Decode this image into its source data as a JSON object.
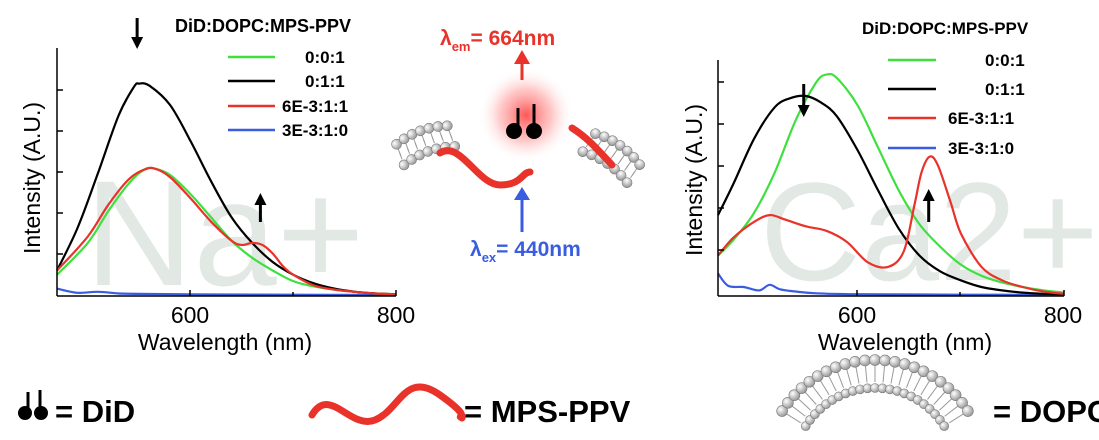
{
  "colors": {
    "green": "#3ee03e",
    "black": "#000000",
    "red": "#e8322a",
    "blue": "#3a5ce0",
    "watermark": "#e2e8e4",
    "lipid": "#bdbdbd"
  },
  "chart_data": [
    {
      "type": "line",
      "panel": "left",
      "watermark": "Na+",
      "xlabel": "Wavelength (nm)",
      "ylabel": "Intensity (A.U.)",
      "xlim": [
        470,
        800
      ],
      "ylim": [
        0,
        1.05
      ],
      "xticks": [
        "600",
        "800"
      ],
      "legend_title": "DiD:DOPC:MPS-PPV",
      "legend_position": "top-right",
      "series": [
        {
          "name": "0:0:1",
          "color": "#3ee03e",
          "x": [
            470,
            500,
            520,
            540,
            555,
            565,
            580,
            600,
            620,
            640,
            660,
            680,
            700,
            720,
            740,
            760,
            780,
            800
          ],
          "y": [
            0.1,
            0.25,
            0.4,
            0.53,
            0.595,
            0.6,
            0.57,
            0.48,
            0.37,
            0.26,
            0.18,
            0.12,
            0.07,
            0.045,
            0.03,
            0.02,
            0.012,
            0.008
          ]
        },
        {
          "name": "0:1:1",
          "color": "#000000",
          "x": [
            470,
            490,
            510,
            530,
            545,
            550,
            560,
            580,
            600,
            620,
            640,
            660,
            680,
            700,
            720,
            740,
            760,
            780,
            800
          ],
          "y": [
            0.12,
            0.32,
            0.58,
            0.85,
            0.985,
            1.0,
            0.99,
            0.9,
            0.73,
            0.54,
            0.37,
            0.25,
            0.16,
            0.1,
            0.06,
            0.035,
            0.02,
            0.012,
            0.008
          ]
        },
        {
          "name": "6E-3:1:1",
          "color": "#e8322a",
          "x": [
            470,
            500,
            520,
            540,
            555,
            565,
            580,
            600,
            620,
            640,
            650,
            660,
            670,
            680,
            690,
            700,
            720,
            740,
            760,
            780,
            800
          ],
          "y": [
            0.12,
            0.28,
            0.43,
            0.55,
            0.595,
            0.6,
            0.56,
            0.46,
            0.35,
            0.26,
            0.24,
            0.25,
            0.24,
            0.2,
            0.14,
            0.1,
            0.05,
            0.03,
            0.02,
            0.012,
            0.008
          ]
        },
        {
          "name": "3E-3:1:0",
          "color": "#3a5ce0",
          "x": [
            470,
            490,
            510,
            530,
            550,
            600,
            700,
            800
          ],
          "y": [
            0.035,
            0.015,
            0.02,
            0.012,
            0.01,
            0.008,
            0.006,
            0.005
          ]
        }
      ],
      "arrows": [
        {
          "direction": "down",
          "at_x": 548
        },
        {
          "direction": "up",
          "at_x": 668
        }
      ]
    },
    {
      "type": "line",
      "panel": "right",
      "watermark": "Ca2+",
      "xlabel": "Wavelength (nm)",
      "ylabel": "Intensity (A.U.)",
      "xlim": [
        465,
        800
      ],
      "ylim": [
        0,
        1.05
      ],
      "xticks": [
        "600",
        "800"
      ],
      "legend_title": "DiD:DOPC:MPS-PPV",
      "legend_position": "top-right",
      "series": [
        {
          "name": "0:0:1",
          "color": "#3ee03e",
          "x": [
            465,
            480,
            500,
            520,
            540,
            560,
            570,
            580,
            600,
            620,
            640,
            660,
            680,
            700,
            720,
            740,
            760,
            780,
            800
          ],
          "y": [
            0.18,
            0.25,
            0.37,
            0.55,
            0.78,
            0.95,
            0.985,
            0.97,
            0.85,
            0.66,
            0.47,
            0.32,
            0.22,
            0.14,
            0.09,
            0.06,
            0.04,
            0.025,
            0.015
          ]
        },
        {
          "name": "0:1:1",
          "color": "#000000",
          "x": [
            465,
            480,
            500,
            520,
            535,
            550,
            565,
            580,
            600,
            620,
            640,
            660,
            680,
            700,
            720,
            740,
            760,
            780,
            800
          ],
          "y": [
            0.36,
            0.5,
            0.7,
            0.84,
            0.88,
            0.89,
            0.86,
            0.8,
            0.65,
            0.47,
            0.3,
            0.18,
            0.11,
            0.07,
            0.04,
            0.025,
            0.015,
            0.01,
            0.008
          ]
        },
        {
          "name": "6E-3:1:1",
          "color": "#e8322a",
          "x": [
            465,
            480,
            500,
            515,
            530,
            550,
            570,
            590,
            610,
            630,
            645,
            655,
            662,
            670,
            678,
            690,
            700,
            720,
            740,
            760,
            780,
            800
          ],
          "y": [
            0.18,
            0.26,
            0.33,
            0.36,
            0.34,
            0.31,
            0.29,
            0.24,
            0.15,
            0.13,
            0.2,
            0.4,
            0.55,
            0.62,
            0.58,
            0.42,
            0.28,
            0.13,
            0.07,
            0.04,
            0.02,
            0.01
          ]
        },
        {
          "name": "3E-3:1:0",
          "color": "#3a5ce0",
          "x": [
            465,
            475,
            490,
            505,
            515,
            525,
            540,
            560,
            600,
            700,
            800
          ],
          "y": [
            0.1,
            0.045,
            0.04,
            0.025,
            0.05,
            0.03,
            0.02,
            0.012,
            0.008,
            0.006,
            0.005
          ]
        }
      ],
      "arrows": [
        {
          "direction": "down",
          "at_x": 548
        },
        {
          "direction": "up",
          "at_x": 669
        }
      ]
    }
  ],
  "schematic": {
    "em_label": "λ",
    "em_sub": "em",
    "em_value": "= 664nm",
    "ex_label": "λ",
    "ex_sub": "ex",
    "ex_value": "= 440nm"
  },
  "key": {
    "did": "= DiD",
    "mpsppv": "= MPS-PPV",
    "dopc": "= DOPC"
  }
}
